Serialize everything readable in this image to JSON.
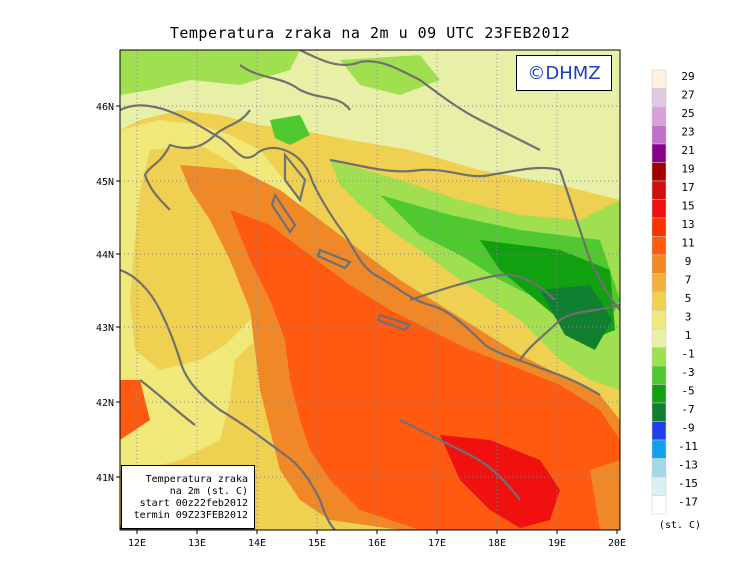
{
  "title": "Temperatura zraka na 2m u 09 UTC 23FEB2012",
  "logo": "©DHMZ",
  "info_box": {
    "line1": "Temperatura zraka",
    "line2": "na 2m (st. C)",
    "line3": "start 00z22feb2012",
    "line4": "termin 09Z23FEB2012"
  },
  "legend": {
    "unit": "(st. C)",
    "labels": [
      "29",
      "27",
      "25",
      "23",
      "21",
      "19",
      "17",
      "15",
      "13",
      "11",
      "9",
      "7",
      "5",
      "3",
      "1",
      "-1",
      "-3",
      "-5",
      "-7",
      "-9",
      "-11",
      "-13",
      "-15",
      "-17"
    ],
    "colors": [
      "#fff0e0",
      "#e0c8e0",
      "#d8a0d8",
      "#c070c8",
      "#8c0090",
      "#a00000",
      "#d01010",
      "#f01010",
      "#ff3000",
      "#ff5a10",
      "#f08828",
      "#f0b040",
      "#f0d050",
      "#f0e878",
      "#e8f0a8",
      "#a0e050",
      "#50c830",
      "#10a010",
      "#108030",
      "#2040f0",
      "#10a0f0",
      "#a0d8e8",
      "#d8f0f0",
      "#ffffff"
    ]
  },
  "axes": {
    "lat_labels": [
      "46N",
      "45N",
      "44N",
      "43N",
      "42N",
      "41N"
    ],
    "lon_labels": [
      "12E",
      "13E",
      "14E",
      "15E",
      "16E",
      "17E",
      "18E",
      "19E",
      "20E"
    ]
  }
}
